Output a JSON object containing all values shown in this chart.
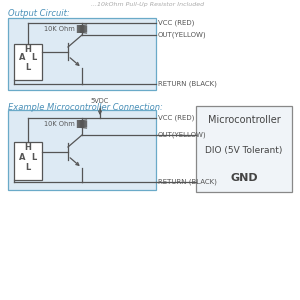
{
  "title_top": "...10kOhm Pull-Up Resistor Included",
  "section1_label": "Output Circuit:",
  "section2_label": "Example Microcontroller Connection:",
  "bg_color": "#ffffff",
  "box_fill": "#ddeaf4",
  "box_edge": "#6aaac8",
  "label_color": "#4a90b8",
  "line_color": "#555555",
  "text_color": "#444444",
  "mc_box_fill": "#f0f4f8",
  "mc_box_edge": "#888888",
  "vcc_label": "VCC (RED)",
  "out_label": "OUT(YELLOW)",
  "ret_label": "RETURN (BLACK)",
  "res_label": "10K Ohm",
  "vcc_label2": "VCC (RED)",
  "out_label2": "OUT(YELLOW)",
  "ret_label2": "RETURN (BLACK)",
  "res_label2": "10K Ohm",
  "vdc_label": "5VDC",
  "mc_label": "Microcontroller",
  "dio_label": "DIO (5V Tolerant)",
  "gnd_label": "GND"
}
